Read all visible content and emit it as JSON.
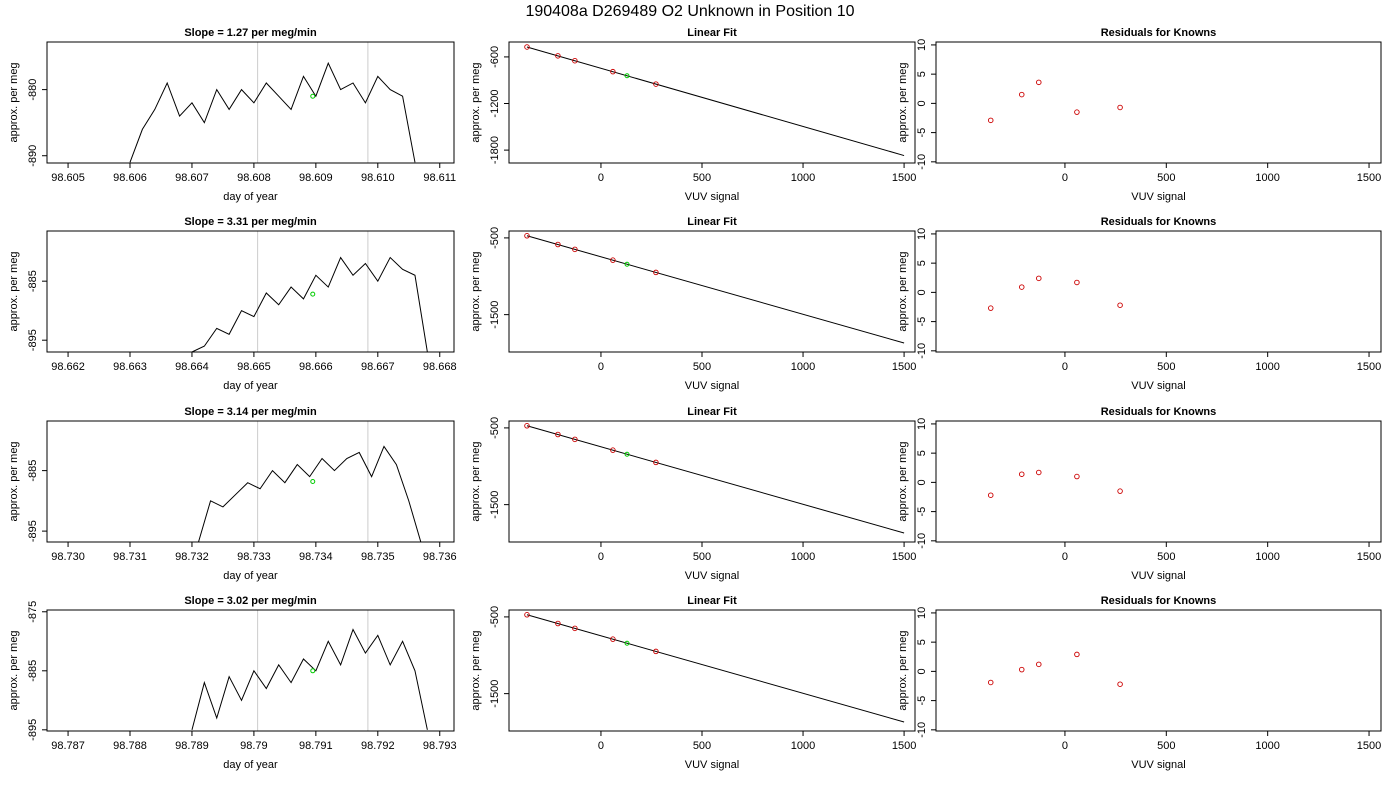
{
  "title": "190408a     D269489   O2 Unknown in Position  10",
  "chart_data": [
    {
      "type": "line",
      "title": "Slope =  1.27  per meg/min",
      "xlabel": "day of year",
      "ylabel": "approx. per meg",
      "x": [
        98.606,
        98.6062,
        98.6064,
        98.6066,
        98.6068,
        98.607,
        98.6072,
        98.6074,
        98.6076,
        98.6078,
        98.608,
        98.6082,
        98.6084,
        98.6086,
        98.6088,
        98.609,
        98.6092,
        98.6094,
        98.6096,
        98.6098,
        98.61,
        98.6102,
        98.6104,
        98.6106
      ],
      "values": [
        -891,
        -886,
        -883,
        -879,
        -884,
        -882,
        -885,
        -880,
        -883,
        -880,
        -882,
        -879,
        -881,
        -883,
        -878,
        -881,
        -876,
        -880,
        -879,
        -882,
        -878,
        -880,
        -881,
        -891
      ],
      "color": "#000000",
      "xlim": [
        98.60466,
        98.61123
      ],
      "ylim": [
        -891.1,
        -872.8
      ],
      "xticks": [
        98.605,
        98.606,
        98.607,
        98.608,
        98.609,
        {
          "value": 98.61,
          "label": "98.610"
        },
        98.611
      ],
      "yticks": [
        -890,
        -880
      ],
      "vlines": [
        98.60806,
        98.60984
      ],
      "vline_color": "#cccccc",
      "highlight": {
        "x": 98.60895,
        "y": -881,
        "color": "#00cc00"
      }
    },
    {
      "type": "scatter",
      "title": "Linear Fit",
      "xlabel": "VUV signal",
      "ylabel": "approx. per meg",
      "x": [
        -366,
        -213,
        -129,
        59,
        272
      ],
      "values": [
        -472,
        -586,
        -649,
        -790,
        -950
      ],
      "color": "#cc0000",
      "xlim": [
        -455,
        1554
      ],
      "ylim": [
        -1966,
        -408
      ],
      "xticks": [
        0,
        500,
        1000,
        1500
      ],
      "yticks": [
        -1800,
        -1200,
        -600
      ],
      "fit_line": {
        "x": [
          -366,
          1500
        ],
        "values": [
          -472,
          -1870
        ],
        "color": "#000000"
      },
      "highlight": {
        "x": 129,
        "y": -843,
        "color": "#00cc00"
      }
    },
    {
      "type": "scatter",
      "title": "Residuals for Knowns",
      "xlabel": "VUV signal",
      "ylabel": "approx. per meg",
      "x": [
        -366,
        -213,
        -129,
        59,
        272
      ],
      "values": [
        -2.9,
        1.5,
        3.6,
        -1.5,
        -0.7
      ],
      "color": "#cc0000",
      "xlim": [
        -636,
        1559
      ],
      "ylim": [
        -10.2,
        10.5
      ],
      "xticks": [
        0,
        500,
        1000,
        1500
      ],
      "yticks": [
        -10,
        -5,
        0,
        5,
        10
      ]
    },
    {
      "type": "line",
      "title": "Slope =  3.31  per meg/min",
      "xlabel": "day of year",
      "ylabel": "approx. per meg",
      "x": [
        98.664,
        98.6642,
        98.6644,
        98.6646,
        98.6648,
        98.665,
        98.6652,
        98.6654,
        98.6656,
        98.6658,
        98.666,
        98.6662,
        98.6664,
        98.6666,
        98.6668,
        98.667,
        98.6672,
        98.6674,
        98.6676,
        98.6678
      ],
      "values": [
        -897,
        -896,
        -893,
        -894,
        -890,
        -891,
        -887,
        -889,
        -886,
        -888,
        -884,
        -886,
        -881,
        -884,
        -882,
        -885,
        -881,
        -883,
        -884,
        -897
      ],
      "color": "#000000",
      "xlim": [
        98.66166,
        98.66823
      ],
      "ylim": [
        -897,
        -876.5
      ],
      "xticks": [
        98.662,
        98.663,
        98.664,
        98.665,
        98.666,
        98.667,
        98.668
      ],
      "yticks": [
        -895,
        -885
      ],
      "vlines": [
        98.66506,
        98.66684
      ],
      "vline_color": "#cccccc",
      "highlight": {
        "x": 98.66595,
        "y": -887.2,
        "color": "#00cc00"
      }
    },
    {
      "type": "scatter",
      "title": "Linear Fit",
      "xlabel": "VUV signal",
      "ylabel": "approx. per meg",
      "x": [
        -366,
        -213,
        -129,
        59,
        272
      ],
      "values": [
        -472,
        -586,
        -649,
        -790,
        -950
      ],
      "color": "#cc0000",
      "xlim": [
        -455,
        1554
      ],
      "ylim": [
        -1987,
        -410
      ],
      "xticks": [
        0,
        500,
        1000,
        1500
      ],
      "yticks": [
        -1500,
        -500
      ],
      "fit_line": {
        "x": [
          -366,
          1500
        ],
        "values": [
          -472,
          -1870
        ],
        "color": "#000000"
      },
      "highlight": {
        "x": 129,
        "y": -843,
        "color": "#00cc00"
      }
    },
    {
      "type": "scatter",
      "title": "Residuals for Knowns",
      "xlabel": "VUV signal",
      "ylabel": "approx. per meg",
      "x": [
        -366,
        -213,
        -129,
        59,
        272
      ],
      "values": [
        -2.7,
        0.9,
        2.4,
        1.7,
        -2.2
      ],
      "color": "#cc0000",
      "xlim": [
        -636,
        1559
      ],
      "ylim": [
        -10.2,
        10.5
      ],
      "xticks": [
        0,
        500,
        1000,
        1500
      ],
      "yticks": [
        -10,
        -5,
        0,
        5,
        10
      ]
    },
    {
      "type": "line",
      "title": "Slope =  3.14  per meg/min",
      "xlabel": "day of year",
      "ylabel": "approx. per meg",
      "x": [
        98.7321,
        98.7323,
        98.7325,
        98.7327,
        98.7329,
        98.7331,
        98.7333,
        98.7335,
        98.7337,
        98.7339,
        98.7341,
        98.7343,
        98.7345,
        98.7347,
        98.7349,
        98.7351,
        98.7353,
        98.7355,
        98.7357
      ],
      "values": [
        -897,
        -890,
        -891,
        -889,
        -887,
        -888,
        -885,
        -887,
        -884,
        -886,
        -883,
        -885,
        -883,
        -882,
        -886,
        -881,
        -884,
        -890,
        -897
      ],
      "color": "#000000",
      "xlim": [
        98.72966,
        98.73623
      ],
      "ylim": [
        -896.8,
        -876.8
      ],
      "xticks": [
        {
          "value": 98.73,
          "label": "98.730"
        },
        98.731,
        98.732,
        98.733,
        98.734,
        98.735,
        98.736
      ],
      "yticks": [
        -895,
        -885
      ],
      "vlines": [
        98.73306,
        98.73484
      ],
      "vline_color": "#cccccc",
      "highlight": {
        "x": 98.73395,
        "y": -886.8,
        "color": "#00cc00"
      }
    },
    {
      "type": "scatter",
      "title": "Linear Fit",
      "xlabel": "VUV signal",
      "ylabel": "approx. per meg",
      "x": [
        -366,
        -213,
        -129,
        59,
        272
      ],
      "values": [
        -472,
        -586,
        -649,
        -790,
        -950
      ],
      "color": "#cc0000",
      "xlim": [
        -455,
        1554
      ],
      "ylim": [
        -1987,
        -410
      ],
      "xticks": [
        0,
        500,
        1000,
        1500
      ],
      "yticks": [
        -1500,
        -500
      ],
      "fit_line": {
        "x": [
          -366,
          1500
        ],
        "values": [
          -472,
          -1870
        ],
        "color": "#000000"
      },
      "highlight": {
        "x": 129,
        "y": -843,
        "color": "#00cc00"
      }
    },
    {
      "type": "scatter",
      "title": "Residuals for Knowns",
      "xlabel": "VUV signal",
      "ylabel": "approx. per meg",
      "x": [
        -366,
        -213,
        -129,
        59,
        272
      ],
      "values": [
        -2.2,
        1.4,
        1.7,
        1.0,
        -1.5
      ],
      "color": "#cc0000",
      "xlim": [
        -636,
        1559
      ],
      "ylim": [
        -10.2,
        10.5
      ],
      "xticks": [
        0,
        500,
        1000,
        1500
      ],
      "yticks": [
        -10,
        -5,
        0,
        5,
        10
      ]
    },
    {
      "type": "line",
      "title": "Slope =  3.02  per meg/min",
      "xlabel": "day of year",
      "ylabel": "approx. per meg",
      "x": [
        98.789,
        98.7892,
        98.7894,
        98.7896,
        98.7898,
        98.79,
        98.7902,
        98.7904,
        98.7906,
        98.7908,
        98.791,
        98.7912,
        98.7914,
        98.7916,
        98.7918,
        98.792,
        98.7922,
        98.7924,
        98.7926,
        98.7928
      ],
      "values": [
        -895,
        -887,
        -893,
        -886,
        -890,
        -885,
        -888,
        -884,
        -887,
        -883,
        -885,
        -880,
        -884,
        -878,
        -882,
        -879,
        -884,
        -880,
        -885,
        -895
      ],
      "color": "#000000",
      "xlim": [
        98.78666,
        98.79323
      ],
      "ylim": [
        -895.2,
        -874.7
      ],
      "xticks": [
        98.787,
        98.788,
        98.789,
        98.79,
        98.791,
        98.792,
        98.793
      ],
      "yticks": [
        -895,
        -885,
        -875
      ],
      "vlines": [
        98.79006,
        98.79184
      ],
      "vline_color": "#cccccc",
      "highlight": {
        "x": 98.79095,
        "y": -885,
        "color": "#00cc00"
      }
    },
    {
      "type": "scatter",
      "title": "Linear Fit",
      "xlabel": "VUV signal",
      "ylabel": "approx. per meg",
      "x": [
        -366,
        -213,
        -129,
        59,
        272
      ],
      "values": [
        -472,
        -586,
        -649,
        -790,
        -950
      ],
      "color": "#cc0000",
      "xlim": [
        -455,
        1554
      ],
      "ylim": [
        -1987,
        -410
      ],
      "xticks": [
        0,
        500,
        1000,
        1500
      ],
      "yticks": [
        -1500,
        -500
      ],
      "fit_line": {
        "x": [
          -366,
          1500
        ],
        "values": [
          -472,
          -1870
        ],
        "color": "#000000"
      },
      "highlight": {
        "x": 129,
        "y": -843,
        "color": "#00cc00"
      }
    },
    {
      "type": "scatter",
      "title": "Residuals for Knowns",
      "xlabel": "VUV signal",
      "ylabel": "approx. per meg",
      "x": [
        -366,
        -213,
        -129,
        59,
        272
      ],
      "values": [
        -1.9,
        0.3,
        1.2,
        2.9,
        -2.2
      ],
      "color": "#cc0000",
      "xlim": [
        -636,
        1559
      ],
      "ylim": [
        -10.2,
        10.5
      ],
      "xticks": [
        0,
        500,
        1000,
        1500
      ],
      "yticks": [
        -10,
        -5,
        0,
        5,
        10
      ]
    }
  ]
}
